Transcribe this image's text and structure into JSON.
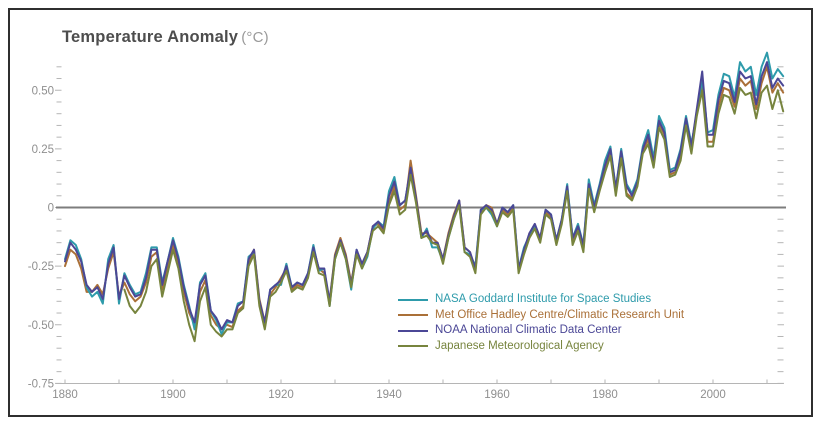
{
  "title": {
    "main": "Temperature Anomaly",
    "units": "(°C)"
  },
  "colors": {
    "title": "#4d4d4d",
    "title_units": "#9a9a9a",
    "frame_border": "#2f2f2f",
    "background": "#ffffff"
  },
  "chart_data": {
    "type": "line",
    "title": "Temperature Anomaly (°C)",
    "xlabel": "",
    "ylabel": "Temperature Anomaly (°C)",
    "x_range": [
      1880,
      2013
    ],
    "y_range": [
      -0.75,
      0.65
    ],
    "grid": false,
    "zero_line": true,
    "legend_position": "inside-bottom-right",
    "minor_tick_step": {
      "x": 10,
      "y": 0.05
    },
    "style": {
      "axis_color": "#b5b5b5",
      "label_color": "#8f8f8f",
      "zero_line_color": "#7d7d7d"
    },
    "y_tick_labels": [
      {
        "value": 0.5,
        "label": "0.50"
      },
      {
        "value": 0.25,
        "label": "0.25"
      },
      {
        "value": 0,
        "label": "0"
      },
      {
        "value": -0.25,
        "label": "-0.25"
      },
      {
        "value": -0.5,
        "label": "-0.50"
      },
      {
        "value": -0.75,
        "label": "-0.75"
      }
    ],
    "x_tick_labels": [
      {
        "value": 1880,
        "label": "1880"
      },
      {
        "value": 1900,
        "label": "1900"
      },
      {
        "value": 1920,
        "label": "1920"
      },
      {
        "value": 1940,
        "label": "1940"
      },
      {
        "value": 1960,
        "label": "1960"
      },
      {
        "value": 1980,
        "label": "1980"
      },
      {
        "value": 2000,
        "label": "2000"
      }
    ],
    "years": [
      1880,
      1881,
      1882,
      1883,
      1884,
      1885,
      1886,
      1887,
      1888,
      1889,
      1890,
      1891,
      1892,
      1893,
      1894,
      1895,
      1896,
      1897,
      1898,
      1899,
      1900,
      1901,
      1902,
      1903,
      1904,
      1905,
      1906,
      1907,
      1908,
      1909,
      1910,
      1911,
      1912,
      1913,
      1914,
      1915,
      1916,
      1917,
      1918,
      1919,
      1920,
      1921,
      1922,
      1923,
      1924,
      1925,
      1926,
      1927,
      1928,
      1929,
      1930,
      1931,
      1932,
      1933,
      1934,
      1935,
      1936,
      1937,
      1938,
      1939,
      1940,
      1941,
      1942,
      1943,
      1944,
      1945,
      1946,
      1947,
      1948,
      1949,
      1950,
      1951,
      1952,
      1953,
      1954,
      1955,
      1956,
      1957,
      1958,
      1959,
      1960,
      1961,
      1962,
      1963,
      1964,
      1965,
      1966,
      1967,
      1968,
      1969,
      1970,
      1971,
      1972,
      1973,
      1974,
      1975,
      1976,
      1977,
      1978,
      1979,
      1980,
      1981,
      1982,
      1983,
      1984,
      1985,
      1986,
      1987,
      1988,
      1989,
      1990,
      1991,
      1992,
      1993,
      1994,
      1995,
      1996,
      1997,
      1998,
      1999,
      2000,
      2001,
      2002,
      2003,
      2004,
      2005,
      2006,
      2007,
      2008,
      2009,
      2010,
      2011,
      2012,
      2013
    ],
    "series": [
      {
        "name": "NASA Goddard Institute for Space Studies",
        "slug": "nasa-giss",
        "color": "#2E9BAB",
        "values": [
          -0.22,
          -0.14,
          -0.16,
          -0.22,
          -0.34,
          -0.38,
          -0.36,
          -0.41,
          -0.22,
          -0.16,
          -0.41,
          -0.28,
          -0.33,
          -0.37,
          -0.36,
          -0.28,
          -0.17,
          -0.17,
          -0.32,
          -0.23,
          -0.13,
          -0.21,
          -0.33,
          -0.42,
          -0.52,
          -0.32,
          -0.28,
          -0.44,
          -0.48,
          -0.54,
          -0.49,
          -0.49,
          -0.41,
          -0.4,
          -0.21,
          -0.19,
          -0.41,
          -0.51,
          -0.35,
          -0.33,
          -0.33,
          -0.24,
          -0.34,
          -0.32,
          -0.33,
          -0.28,
          -0.16,
          -0.27,
          -0.26,
          -0.42,
          -0.22,
          -0.15,
          -0.22,
          -0.35,
          -0.18,
          -0.26,
          -0.21,
          -0.09,
          -0.06,
          -0.08,
          0.07,
          0.13,
          0.01,
          0.03,
          0.16,
          0.03,
          -0.13,
          -0.09,
          -0.17,
          -0.17,
          -0.23,
          -0.13,
          -0.05,
          0.02,
          -0.19,
          -0.2,
          -0.25,
          -0.01,
          0.0,
          -0.03,
          -0.08,
          0.0,
          -0.02,
          0.01,
          -0.26,
          -0.17,
          -0.12,
          -0.08,
          -0.14,
          -0.01,
          -0.03,
          -0.14,
          -0.05,
          0.1,
          -0.13,
          -0.07,
          -0.16,
          0.12,
          0.01,
          0.1,
          0.2,
          0.26,
          0.08,
          0.25,
          0.1,
          0.06,
          0.12,
          0.26,
          0.33,
          0.21,
          0.39,
          0.34,
          0.16,
          0.17,
          0.25,
          0.39,
          0.27,
          0.4,
          0.55,
          0.32,
          0.33,
          0.48,
          0.57,
          0.56,
          0.47,
          0.62,
          0.58,
          0.6,
          0.48,
          0.6,
          0.66,
          0.55,
          0.59,
          0.56
        ]
      },
      {
        "name": "Met Office Hadley Centre/Climatic Research Unit",
        "slug": "met-office-hadley",
        "color": "#AA7038",
        "values": [
          -0.25,
          -0.18,
          -0.2,
          -0.26,
          -0.36,
          -0.36,
          -0.33,
          -0.37,
          -0.26,
          -0.19,
          -0.38,
          -0.32,
          -0.37,
          -0.4,
          -0.38,
          -0.32,
          -0.21,
          -0.19,
          -0.35,
          -0.25,
          -0.16,
          -0.24,
          -0.36,
          -0.45,
          -0.5,
          -0.36,
          -0.31,
          -0.46,
          -0.5,
          -0.52,
          -0.5,
          -0.51,
          -0.44,
          -0.42,
          -0.24,
          -0.18,
          -0.39,
          -0.49,
          -0.37,
          -0.34,
          -0.3,
          -0.26,
          -0.35,
          -0.33,
          -0.34,
          -0.29,
          -0.18,
          -0.26,
          -0.28,
          -0.4,
          -0.2,
          -0.13,
          -0.2,
          -0.32,
          -0.19,
          -0.24,
          -0.19,
          -0.08,
          -0.07,
          -0.1,
          0.02,
          0.09,
          -0.01,
          0.01,
          0.2,
          0.05,
          -0.11,
          -0.11,
          -0.13,
          -0.15,
          -0.22,
          -0.11,
          -0.03,
          0.03,
          -0.17,
          -0.19,
          -0.27,
          -0.02,
          0.01,
          0.0,
          -0.07,
          -0.01,
          -0.03,
          0.0,
          -0.27,
          -0.19,
          -0.11,
          -0.08,
          -0.13,
          -0.02,
          -0.04,
          -0.15,
          -0.06,
          0.08,
          -0.15,
          -0.09,
          -0.18,
          0.09,
          -0.01,
          0.08,
          0.16,
          0.23,
          0.06,
          0.22,
          0.06,
          0.04,
          0.1,
          0.24,
          0.29,
          0.18,
          0.36,
          0.31,
          0.14,
          0.15,
          0.22,
          0.37,
          0.25,
          0.41,
          0.53,
          0.28,
          0.28,
          0.43,
          0.51,
          0.5,
          0.43,
          0.55,
          0.52,
          0.54,
          0.42,
          0.53,
          0.6,
          0.49,
          0.53,
          0.49
        ]
      },
      {
        "name": "NOAA National Climatic Data Center",
        "slug": "noaa-ncdc",
        "color": "#4B4796",
        "values": [
          -0.23,
          -0.15,
          -0.18,
          -0.23,
          -0.33,
          -0.36,
          -0.34,
          -0.39,
          -0.24,
          -0.17,
          -0.39,
          -0.29,
          -0.34,
          -0.38,
          -0.37,
          -0.3,
          -0.18,
          -0.18,
          -0.33,
          -0.23,
          -0.14,
          -0.22,
          -0.34,
          -0.43,
          -0.49,
          -0.33,
          -0.29,
          -0.44,
          -0.47,
          -0.52,
          -0.48,
          -0.49,
          -0.42,
          -0.4,
          -0.22,
          -0.18,
          -0.4,
          -0.49,
          -0.35,
          -0.33,
          -0.31,
          -0.25,
          -0.34,
          -0.32,
          -0.33,
          -0.28,
          -0.17,
          -0.26,
          -0.26,
          -0.4,
          -0.21,
          -0.14,
          -0.21,
          -0.33,
          -0.18,
          -0.24,
          -0.19,
          -0.08,
          -0.06,
          -0.09,
          0.05,
          0.11,
          0.01,
          0.03,
          0.17,
          0.04,
          -0.12,
          -0.1,
          -0.15,
          -0.15,
          -0.22,
          -0.12,
          -0.04,
          0.03,
          -0.17,
          -0.19,
          -0.26,
          -0.01,
          0.01,
          -0.01,
          -0.07,
          0.0,
          -0.02,
          0.01,
          -0.26,
          -0.18,
          -0.11,
          -0.07,
          -0.13,
          -0.01,
          -0.03,
          -0.14,
          -0.05,
          0.09,
          -0.13,
          -0.08,
          -0.16,
          0.1,
          0.0,
          0.09,
          0.18,
          0.25,
          0.08,
          0.24,
          0.09,
          0.05,
          0.11,
          0.25,
          0.31,
          0.19,
          0.37,
          0.32,
          0.15,
          0.16,
          0.24,
          0.38,
          0.26,
          0.42,
          0.58,
          0.31,
          0.31,
          0.46,
          0.54,
          0.53,
          0.45,
          0.58,
          0.55,
          0.56,
          0.44,
          0.56,
          0.62,
          0.51,
          0.55,
          0.52
        ]
      },
      {
        "name": "Japanese Meteorological Agency",
        "slug": "jma",
        "color": "#77843E",
        "values": [
          null,
          null,
          null,
          null,
          null,
          null,
          null,
          null,
          null,
          null,
          null,
          -0.35,
          -0.42,
          -0.45,
          -0.42,
          -0.36,
          -0.25,
          -0.22,
          -0.38,
          -0.28,
          -0.18,
          -0.26,
          -0.4,
          -0.5,
          -0.57,
          -0.4,
          -0.34,
          -0.5,
          -0.53,
          -0.55,
          -0.52,
          -0.52,
          -0.45,
          -0.43,
          -0.25,
          -0.2,
          -0.42,
          -0.52,
          -0.38,
          -0.36,
          -0.32,
          -0.27,
          -0.36,
          -0.34,
          -0.35,
          -0.3,
          -0.19,
          -0.28,
          -0.29,
          -0.42,
          -0.22,
          -0.15,
          -0.22,
          -0.34,
          -0.2,
          -0.26,
          -0.2,
          -0.1,
          -0.08,
          -0.11,
          0.01,
          0.07,
          -0.03,
          -0.01,
          0.14,
          0.02,
          -0.13,
          -0.12,
          -0.15,
          -0.16,
          -0.24,
          -0.13,
          -0.05,
          0.01,
          -0.19,
          -0.21,
          -0.28,
          -0.03,
          0.0,
          -0.02,
          -0.08,
          -0.02,
          -0.04,
          -0.01,
          -0.28,
          -0.2,
          -0.13,
          -0.09,
          -0.15,
          -0.03,
          -0.05,
          -0.16,
          -0.07,
          0.07,
          -0.16,
          -0.1,
          -0.19,
          0.08,
          -0.02,
          0.07,
          0.15,
          0.22,
          0.05,
          0.21,
          0.05,
          0.03,
          0.09,
          0.23,
          0.27,
          0.17,
          0.34,
          0.29,
          0.13,
          0.14,
          0.2,
          0.35,
          0.23,
          0.39,
          0.5,
          0.26,
          0.26,
          0.4,
          0.48,
          0.47,
          0.4,
          0.51,
          0.48,
          0.49,
          0.38,
          0.49,
          0.52,
          0.42,
          0.5,
          0.41
        ]
      }
    ]
  }
}
